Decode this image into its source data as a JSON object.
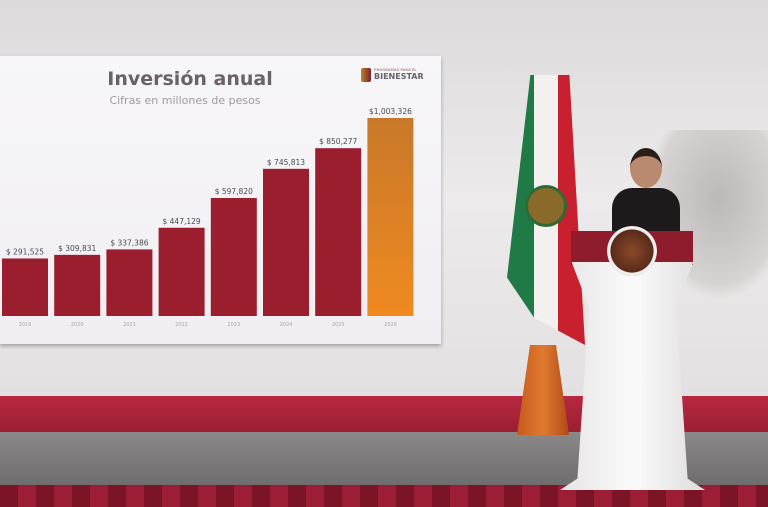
{
  "slide": {
    "title": "Inversión anual",
    "subtitle": "Cifras en millones de pesos",
    "logo_text": "BIENESTAR",
    "logo_small": "PROGRAMAS PARA EL"
  },
  "chart_data": {
    "type": "bar",
    "title": "Inversión anual",
    "subtitle": "Cifras en millones de pesos",
    "categories": [
      "2019",
      "2020",
      "2021",
      "2022",
      "2023",
      "2024",
      "2025",
      "2026"
    ],
    "values": [
      291525,
      309831,
      337386,
      447129,
      597820,
      745813,
      850277,
      1003326
    ],
    "data_labels": [
      "$ 291,525",
      "$ 309,831",
      "$ 337,386",
      "$ 447,129",
      "$ 597,820",
      "$ 745,813",
      "$ 850,277",
      "$1,003,326"
    ],
    "colors": {
      "bar": "#9a1e2e",
      "highlight": "#e07a2a"
    },
    "grid": false
  }
}
